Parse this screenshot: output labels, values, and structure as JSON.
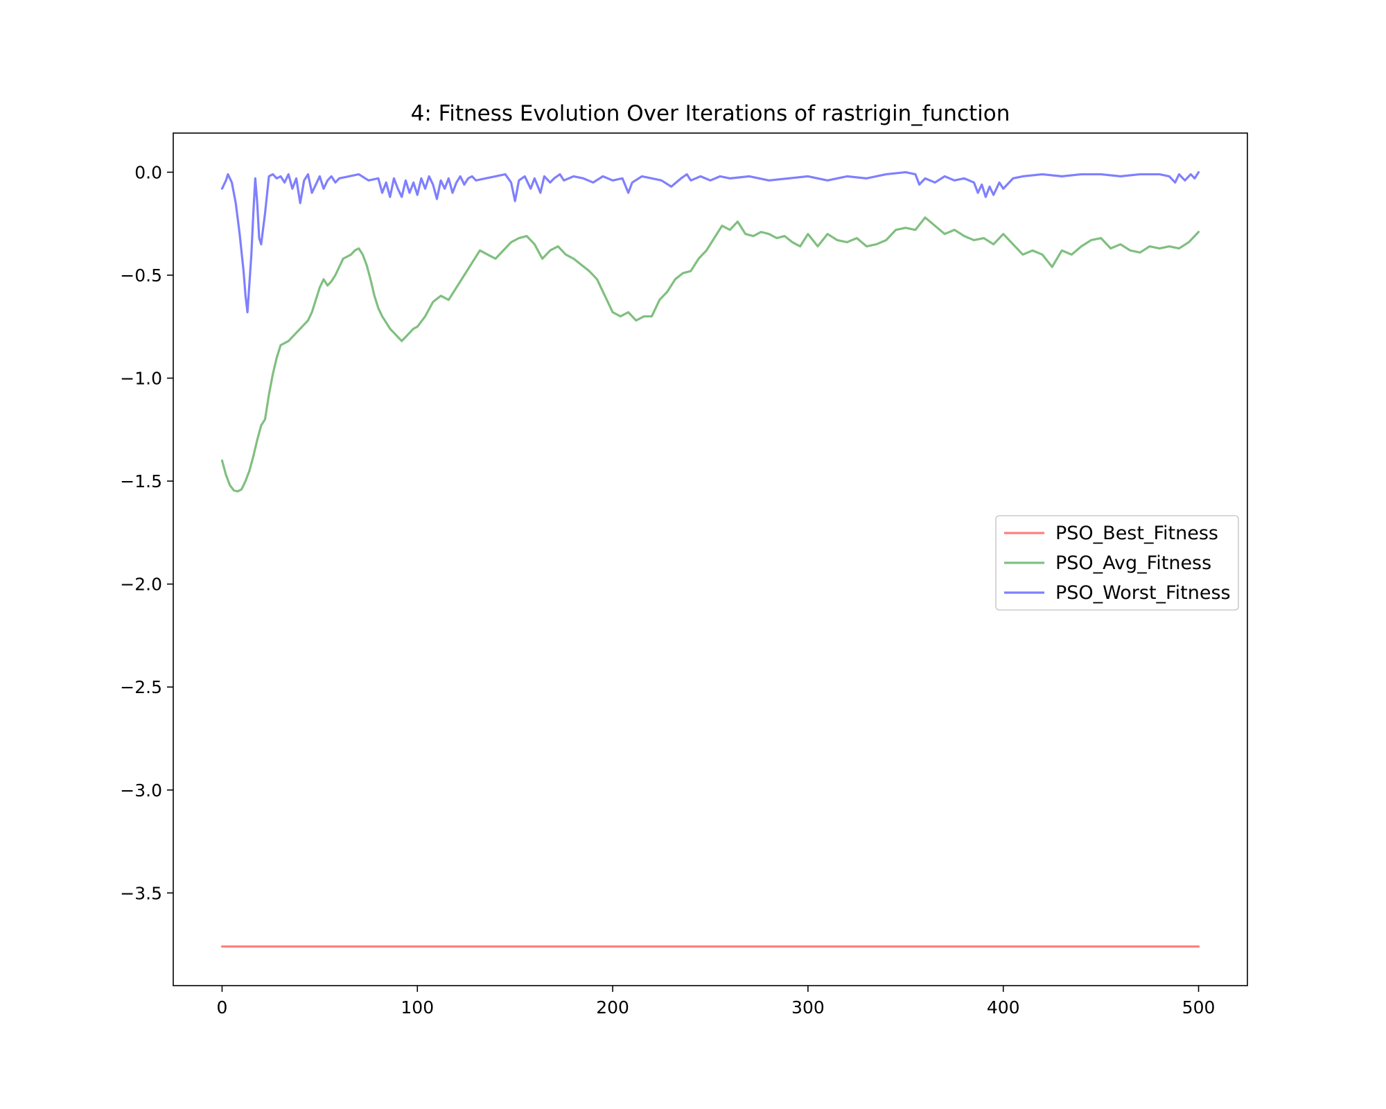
{
  "chart_data": {
    "type": "line",
    "title": "4: Fitness Evolution Over Iterations of rastrigin_function",
    "xlabel": "",
    "ylabel": "",
    "xlim": [
      -25,
      525
    ],
    "ylim": [
      -3.95,
      0.19
    ],
    "xticks": [
      0,
      100,
      200,
      300,
      400,
      500
    ],
    "xtick_labels": [
      "0",
      "100",
      "200",
      "300",
      "400",
      "500"
    ],
    "yticks": [
      0.0,
      -0.5,
      -1.0,
      -1.5,
      -2.0,
      -2.5,
      -3.0,
      -3.5
    ],
    "ytick_labels": [
      "0.0",
      "−0.5",
      "−1.0",
      "−1.5",
      "−2.0",
      "−2.5",
      "−3.0",
      "−3.5"
    ],
    "grid": false,
    "legend_position": "center-right",
    "series": [
      {
        "name": "PSO_Best_Fitness",
        "color": "#ff7f7f",
        "x": [
          0,
          500
        ],
        "y": [
          -3.76,
          -3.76
        ]
      },
      {
        "name": "PSO_Avg_Fitness",
        "color": "#7fbf7f",
        "x": [
          0,
          2,
          4,
          6,
          8,
          10,
          12,
          14,
          16,
          18,
          20,
          22,
          24,
          26,
          28,
          30,
          32,
          34,
          36,
          38,
          40,
          42,
          44,
          46,
          48,
          50,
          52,
          54,
          56,
          58,
          60,
          62,
          64,
          66,
          68,
          70,
          72,
          74,
          76,
          78,
          80,
          82,
          84,
          86,
          88,
          90,
          92,
          94,
          96,
          98,
          100,
          104,
          108,
          112,
          116,
          120,
          124,
          128,
          132,
          136,
          140,
          144,
          148,
          152,
          156,
          160,
          164,
          168,
          172,
          176,
          180,
          184,
          188,
          192,
          196,
          200,
          204,
          208,
          212,
          216,
          220,
          224,
          228,
          232,
          236,
          240,
          244,
          248,
          252,
          256,
          260,
          264,
          268,
          272,
          276,
          280,
          284,
          288,
          292,
          296,
          300,
          305,
          310,
          315,
          320,
          325,
          330,
          335,
          340,
          345,
          350,
          355,
          360,
          365,
          370,
          375,
          380,
          385,
          390,
          395,
          400,
          405,
          410,
          415,
          420,
          425,
          430,
          435,
          440,
          445,
          450,
          455,
          460,
          465,
          470,
          475,
          480,
          485,
          490,
          495,
          500
        ],
        "y": [
          -1.4,
          -1.47,
          -1.52,
          -1.545,
          -1.55,
          -1.54,
          -1.5,
          -1.45,
          -1.38,
          -1.3,
          -1.23,
          -1.2,
          -1.08,
          -0.98,
          -0.9,
          -0.84,
          -0.83,
          -0.82,
          -0.8,
          -0.78,
          -0.76,
          -0.74,
          -0.72,
          -0.68,
          -0.62,
          -0.56,
          -0.52,
          -0.55,
          -0.53,
          -0.5,
          -0.46,
          -0.42,
          -0.41,
          -0.4,
          -0.38,
          -0.37,
          -0.4,
          -0.45,
          -0.52,
          -0.6,
          -0.66,
          -0.7,
          -0.73,
          -0.76,
          -0.78,
          -0.8,
          -0.82,
          -0.8,
          -0.78,
          -0.76,
          -0.75,
          -0.7,
          -0.63,
          -0.6,
          -0.62,
          -0.56,
          -0.5,
          -0.44,
          -0.38,
          -0.4,
          -0.42,
          -0.38,
          -0.34,
          -0.32,
          -0.31,
          -0.35,
          -0.42,
          -0.38,
          -0.36,
          -0.4,
          -0.42,
          -0.45,
          -0.48,
          -0.52,
          -0.6,
          -0.68,
          -0.7,
          -0.68,
          -0.72,
          -0.7,
          -0.7,
          -0.62,
          -0.58,
          -0.52,
          -0.49,
          -0.48,
          -0.42,
          -0.38,
          -0.32,
          -0.26,
          -0.28,
          -0.24,
          -0.3,
          -0.31,
          -0.29,
          -0.3,
          -0.32,
          -0.31,
          -0.34,
          -0.36,
          -0.3,
          -0.36,
          -0.3,
          -0.33,
          -0.34,
          -0.32,
          -0.36,
          -0.35,
          -0.33,
          -0.28,
          -0.27,
          -0.28,
          -0.22,
          -0.26,
          -0.3,
          -0.28,
          -0.31,
          -0.33,
          -0.32,
          -0.35,
          -0.3,
          -0.35,
          -0.4,
          -0.38,
          -0.4,
          -0.46,
          -0.38,
          -0.4,
          -0.36,
          -0.33,
          -0.32,
          -0.37,
          -0.35,
          -0.38,
          -0.39,
          -0.36,
          -0.37,
          -0.36,
          -0.37,
          -0.34,
          -0.29
        ]
      },
      {
        "name": "PSO_Worst_Fitness",
        "color": "#7f7fff",
        "x": [
          0,
          2,
          3,
          5,
          7,
          9,
          11,
          12,
          13,
          15,
          16,
          17,
          18,
          19,
          20,
          22,
          24,
          26,
          28,
          30,
          32,
          34,
          36,
          38,
          40,
          42,
          44,
          46,
          48,
          50,
          52,
          54,
          56,
          58,
          60,
          65,
          70,
          75,
          80,
          82,
          84,
          86,
          88,
          90,
          92,
          94,
          96,
          98,
          100,
          102,
          104,
          106,
          108,
          110,
          112,
          114,
          116,
          118,
          120,
          122,
          124,
          126,
          128,
          130,
          135,
          140,
          145,
          148,
          150,
          152,
          155,
          158,
          160,
          163,
          165,
          168,
          170,
          173,
          175,
          180,
          185,
          190,
          195,
          200,
          205,
          208,
          210,
          215,
          220,
          225,
          230,
          235,
          238,
          240,
          245,
          250,
          255,
          260,
          270,
          280,
          290,
          300,
          310,
          320,
          330,
          340,
          350,
          355,
          357,
          360,
          365,
          370,
          375,
          380,
          385,
          387,
          389,
          391,
          393,
          395,
          398,
          400,
          405,
          410,
          420,
          430,
          440,
          450,
          460,
          470,
          480,
          485,
          488,
          490,
          493,
          496,
          498,
          500
        ],
        "y": [
          -0.08,
          -0.04,
          -0.01,
          -0.05,
          -0.15,
          -0.3,
          -0.48,
          -0.6,
          -0.68,
          -0.4,
          -0.2,
          -0.03,
          -0.15,
          -0.32,
          -0.35,
          -0.2,
          -0.02,
          -0.01,
          -0.03,
          -0.02,
          -0.05,
          -0.01,
          -0.08,
          -0.03,
          -0.15,
          -0.04,
          -0.01,
          -0.1,
          -0.06,
          -0.02,
          -0.08,
          -0.04,
          -0.02,
          -0.05,
          -0.03,
          -0.02,
          -0.01,
          -0.04,
          -0.03,
          -0.1,
          -0.05,
          -0.12,
          -0.03,
          -0.08,
          -0.12,
          -0.04,
          -0.1,
          -0.05,
          -0.11,
          -0.03,
          -0.08,
          -0.02,
          -0.06,
          -0.13,
          -0.04,
          -0.08,
          -0.03,
          -0.1,
          -0.05,
          -0.02,
          -0.06,
          -0.03,
          -0.02,
          -0.04,
          -0.03,
          -0.02,
          -0.01,
          -0.05,
          -0.14,
          -0.04,
          -0.02,
          -0.08,
          -0.03,
          -0.1,
          -0.02,
          -0.05,
          -0.03,
          -0.01,
          -0.04,
          -0.02,
          -0.03,
          -0.05,
          -0.02,
          -0.04,
          -0.03,
          -0.1,
          -0.05,
          -0.02,
          -0.03,
          -0.04,
          -0.07,
          -0.03,
          -0.01,
          -0.04,
          -0.02,
          -0.04,
          -0.02,
          -0.03,
          -0.02,
          -0.04,
          -0.03,
          -0.02,
          -0.04,
          -0.02,
          -0.03,
          -0.01,
          0.0,
          -0.01,
          -0.06,
          -0.03,
          -0.05,
          -0.02,
          -0.04,
          -0.03,
          -0.05,
          -0.1,
          -0.06,
          -0.12,
          -0.07,
          -0.11,
          -0.05,
          -0.08,
          -0.03,
          -0.02,
          -0.01,
          -0.02,
          -0.01,
          -0.01,
          -0.02,
          -0.01,
          -0.01,
          -0.02,
          -0.05,
          -0.01,
          -0.04,
          -0.01,
          -0.03,
          0.0
        ]
      }
    ]
  }
}
